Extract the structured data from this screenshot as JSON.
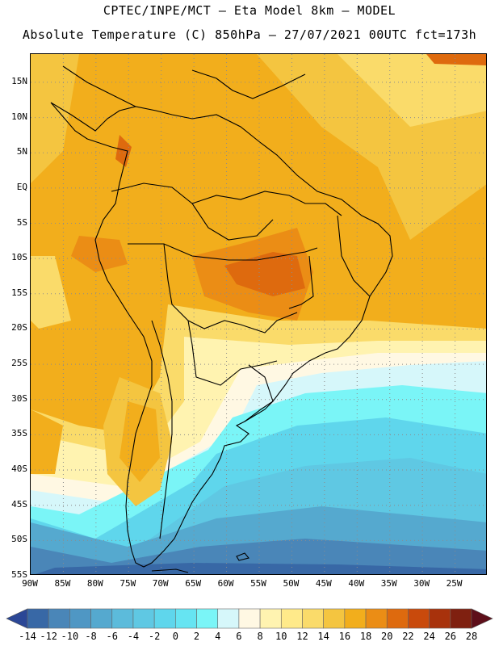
{
  "title": {
    "line1": "CPTEC/INPE/MCT –  Eta Model 8km – MODEL",
    "line2": "Absolute Temperature (C) 850hPa – 27/07/2021 00UTC fct=173h"
  },
  "map": {
    "variable": "Absolute Temperature (C) at 850hPa",
    "region": "South America",
    "lat_labels": [
      "15N",
      "10N",
      "5N",
      "EQ",
      "5S",
      "10S",
      "15S",
      "20S",
      "25S",
      "30S",
      "35S",
      "40S",
      "45S",
      "50S",
      "55S"
    ],
    "lon_labels": [
      "90W",
      "85W",
      "80W",
      "75W",
      "70W",
      "65W",
      "60W",
      "55W",
      "50W",
      "45W",
      "40W",
      "35W",
      "30W",
      "25W"
    ],
    "lat_range": [
      -55,
      19
    ],
    "lon_range": [
      -90,
      -20
    ]
  },
  "colorbar": {
    "labels": [
      "-14",
      "-12",
      "-10",
      "-8",
      "-6",
      "-4",
      "-2",
      "0",
      "2",
      "4",
      "6",
      "8",
      "10",
      "12",
      "14",
      "16",
      "18",
      "20",
      "22",
      "24",
      "26",
      "28"
    ],
    "colors": [
      "#2b4796",
      "#3868a6",
      "#4a86b8",
      "#4f97c4",
      "#55a9cf",
      "#5cbbdb",
      "#5fc8e3",
      "#5fd6ec",
      "#66e4f2",
      "#7af5f7",
      "#d6f7fa",
      "#fff8e3",
      "#fff3b0",
      "#ffea8a",
      "#fadb6a",
      "#f4c540",
      "#f2ae1c",
      "#eb8d15",
      "#de6a0e",
      "#c94a0c",
      "#a8320c",
      "#7f2010",
      "#5e0f1a"
    ]
  }
}
